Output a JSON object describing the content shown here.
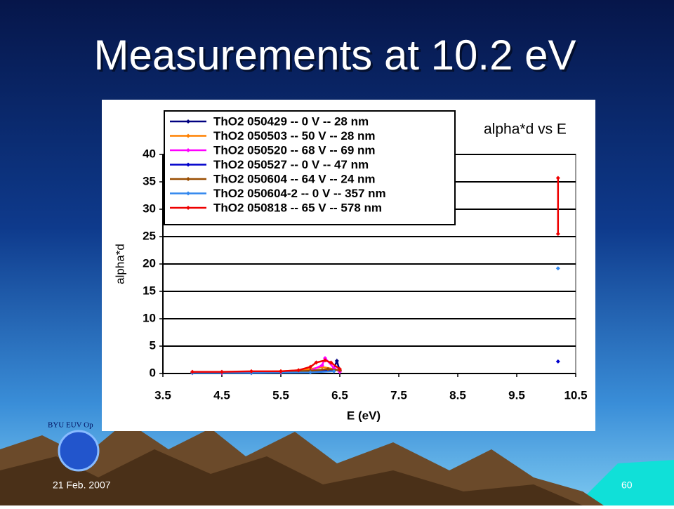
{
  "slide": {
    "title": "Measurements at 10.2 eV",
    "date": "21 Feb. 2007",
    "page": "60",
    "logo_text": "BYU EUV Op"
  },
  "chart_data": {
    "type": "line",
    "title": "alpha*d vs E",
    "x_label": "E (eV)",
    "y_label": "alpha*d",
    "xlim": [
      3.5,
      10.5
    ],
    "xticks": [
      3.5,
      4.5,
      5.5,
      6.5,
      7.5,
      8.5,
      9.5,
      10.5
    ],
    "ylim": [
      0,
      40
    ],
    "yticks": [
      0,
      5,
      10,
      15,
      20,
      25,
      30,
      35,
      40
    ],
    "grid": true,
    "legend": "upper left",
    "series": [
      {
        "name": "ThO2 050429 -- 0 V -- 28 nm",
        "color": "#000080",
        "x": [
          4.0,
          4.5,
          5.0,
          5.5,
          6.0,
          6.2,
          6.4,
          6.45,
          6.5
        ],
        "values": [
          0.2,
          0.1,
          0.1,
          0.2,
          0.4,
          0.6,
          0.9,
          2.3,
          0.5
        ]
      },
      {
        "name": "ThO2 050503 -- 50 V -- 28 nm",
        "color": "#ff8000",
        "x": [
          4.0,
          4.5,
          5.0,
          5.5,
          5.8,
          6.0,
          6.2,
          6.4,
          6.5
        ],
        "values": [
          0.2,
          0.2,
          0.3,
          0.4,
          0.6,
          0.8,
          1.2,
          0.8,
          0.5
        ]
      },
      {
        "name": "ThO2 050520 -- 68 V -- 69 nm",
        "color": "#ff00ff",
        "x": [
          4.0,
          4.5,
          5.0,
          5.5,
          6.0,
          6.2,
          6.25,
          6.4,
          6.5
        ],
        "values": [
          0.1,
          0.1,
          0.2,
          0.2,
          0.5,
          1.5,
          2.8,
          1.0,
          0.3
        ]
      },
      {
        "name": "ThO2 050527 -- 0 V -- 47 nm",
        "color": "#0000cc",
        "x": [
          4.0,
          5.0,
          6.0,
          6.4,
          null,
          10.2
        ],
        "values": [
          0.1,
          0.1,
          0.3,
          0.5,
          null,
          2.2
        ]
      },
      {
        "name": "ThO2 050604 -- 64 V -- 24 nm",
        "color": "#994c00",
        "x": [
          4.0,
          4.5,
          5.0,
          5.5,
          6.0,
          6.3,
          6.5
        ],
        "values": [
          0.2,
          0.2,
          0.3,
          0.3,
          0.5,
          0.8,
          0.6
        ]
      },
      {
        "name": "ThO2 050604-2 -- 0 V -- 357 nm",
        "color": "#3388ee",
        "x": [
          4.0,
          5.0,
          6.0,
          6.4,
          null,
          10.2
        ],
        "values": [
          0.1,
          0.1,
          0.2,
          0.4,
          null,
          19.2
        ]
      },
      {
        "name": "ThO2 050818 -- 65 V -- 578 nm",
        "color": "#ee0000",
        "x": [
          4.0,
          4.5,
          5.0,
          5.5,
          5.8,
          6.0,
          6.1,
          6.25,
          6.35,
          6.5,
          null,
          10.2,
          10.2
        ],
        "values": [
          0.3,
          0.3,
          0.4,
          0.4,
          0.6,
          1.2,
          2.0,
          2.4,
          2.0,
          0.8,
          null,
          25.5,
          35.7
        ]
      }
    ]
  }
}
